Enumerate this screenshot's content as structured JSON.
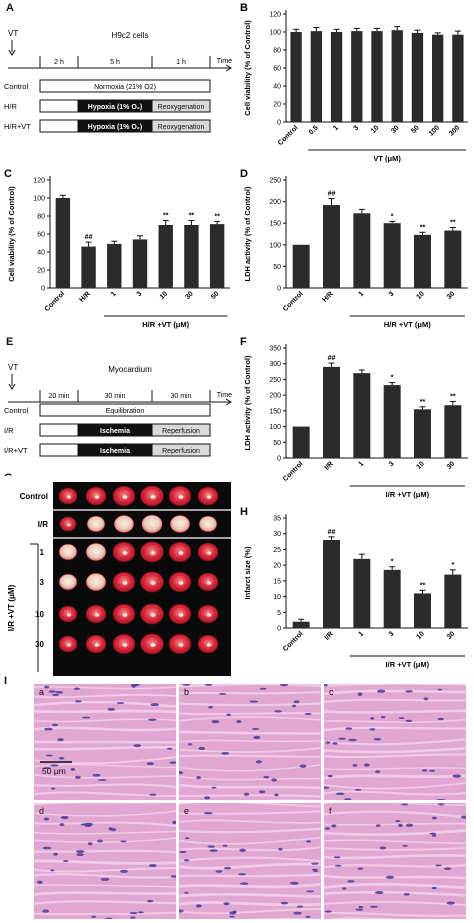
{
  "panels": {
    "A": {
      "letter": "A",
      "vt": "VT",
      "title": "H9c2 cells",
      "times": [
        "2 h",
        "5 h",
        "1 h"
      ],
      "time_label": "Time",
      "rows": [
        {
          "label": "Control",
          "segments": [
            {
              "text": "Normoxia (21% O2)",
              "style": "white"
            }
          ]
        },
        {
          "label": "H/R",
          "segments": [
            {
              "text": "",
              "style": "white"
            },
            {
              "text": "Hypoxia (1% O₂)",
              "style": "black"
            },
            {
              "text": "Reoxygenation",
              "style": "gray"
            }
          ]
        },
        {
          "label": "H/R+VT",
          "segments": [
            {
              "text": "",
              "style": "white"
            },
            {
              "text": "Hypoxia (1% O₂)",
              "style": "black"
            },
            {
              "text": "Reoxygenation",
              "style": "gray"
            }
          ]
        }
      ]
    },
    "E": {
      "letter": "E",
      "vt": "VT",
      "title": "Myocardium",
      "times": [
        "20 min",
        "30 min",
        "30 min"
      ],
      "time_label": "Time",
      "rows": [
        {
          "label": "Control",
          "segments": [
            {
              "text": "Equilibration",
              "style": "white"
            }
          ]
        },
        {
          "label": "I/R",
          "segments": [
            {
              "text": "",
              "style": "white"
            },
            {
              "text": "Ischemia",
              "style": "black"
            },
            {
              "text": "Reperfusion",
              "style": "gray"
            }
          ]
        },
        {
          "label": "I/R+VT",
          "segments": [
            {
              "text": "",
              "style": "white"
            },
            {
              "text": "Ischemia",
              "style": "black"
            },
            {
              "text": "Reperfusion",
              "style": "gray"
            }
          ]
        }
      ]
    },
    "G": {
      "letter": "G",
      "rows": [
        "Control",
        "I/R",
        "1",
        "3",
        "10",
        "30"
      ],
      "group_label": "I/R +VT (μM)"
    },
    "I": {
      "letter": "I",
      "subpanels": [
        "a",
        "b",
        "c",
        "d",
        "e",
        "f"
      ],
      "scale_bar": "50 μm"
    }
  },
  "chart_data": [
    {
      "id": "B",
      "letter": "B",
      "type": "bar",
      "categories": [
        "Control",
        "0.5",
        "1",
        "3",
        "10",
        "30",
        "50",
        "100",
        "300"
      ],
      "values": [
        100,
        101,
        100,
        101,
        101,
        102,
        99,
        97,
        97
      ],
      "errors": [
        3,
        4,
        3,
        3,
        3,
        4,
        3,
        2,
        4
      ],
      "marks": [
        "",
        "",
        "",
        "",
        "",
        "",
        "",
        "",
        ""
      ],
      "ylabel": "Cell viability (% of Control)",
      "xgroup_label": "VT (μM)",
      "ylim": [
        0,
        120
      ],
      "yticks": [
        0,
        20,
        40,
        60,
        80,
        100,
        120
      ]
    },
    {
      "id": "C",
      "letter": "C",
      "type": "bar",
      "categories": [
        "Control",
        "H/R",
        "1",
        "3",
        "10",
        "30",
        "50"
      ],
      "values": [
        100,
        46,
        49,
        54,
        70,
        70,
        71
      ],
      "errors": [
        3,
        5,
        3,
        4,
        5,
        5,
        3
      ],
      "marks": [
        "",
        "##",
        "",
        "",
        "**",
        "**",
        "**"
      ],
      "ylabel": "Cell viability (% of Control)",
      "xgroup_label": "H/R +VT (μM)",
      "ylim": [
        0,
        120
      ],
      "yticks": [
        0,
        20,
        40,
        60,
        80,
        100,
        120
      ]
    },
    {
      "id": "D",
      "letter": "D",
      "type": "bar",
      "categories": [
        "Control",
        "H/R",
        "1",
        "3",
        "10",
        "30"
      ],
      "values": [
        100,
        192,
        173,
        150,
        123,
        133
      ],
      "errors": [
        0,
        15,
        9,
        4,
        6,
        7
      ],
      "marks": [
        "",
        "##",
        "",
        "*",
        "**",
        "**"
      ],
      "ylabel": "LDH activity (% of Control)",
      "xgroup_label": "H/R +VT (μM)",
      "ylim": [
        0,
        250
      ],
      "yticks": [
        0,
        50,
        100,
        150,
        200,
        250
      ]
    },
    {
      "id": "F",
      "letter": "F",
      "type": "bar",
      "categories": [
        "Control",
        "I/R",
        "1",
        "3",
        "10",
        "30"
      ],
      "values": [
        100,
        290,
        270,
        232,
        155,
        168
      ],
      "errors": [
        0,
        12,
        10,
        8,
        8,
        12
      ],
      "marks": [
        "",
        "##",
        "",
        "*",
        "**",
        "**"
      ],
      "ylabel": "LDH activity (% of Control)",
      "xgroup_label": "I/R +VT (μM)",
      "ylim": [
        0,
        350
      ],
      "yticks": [
        0,
        50,
        100,
        150,
        200,
        250,
        300,
        350
      ]
    },
    {
      "id": "H",
      "letter": "H",
      "type": "bar",
      "categories": [
        "Control",
        "I/R",
        "1",
        "3",
        "10",
        "30"
      ],
      "values": [
        2,
        28,
        22,
        18.5,
        11,
        17
      ],
      "errors": [
        0.8,
        1,
        1.5,
        1,
        1,
        1.5
      ],
      "marks": [
        "",
        "##",
        "",
        "*",
        "**",
        "*"
      ],
      "ylabel": "Infarct size (%)",
      "xgroup_label": "I/R +VT (μM)",
      "ylim": [
        0,
        35
      ],
      "yticks": [
        0,
        5,
        10,
        15,
        20,
        25,
        30,
        35
      ]
    }
  ]
}
